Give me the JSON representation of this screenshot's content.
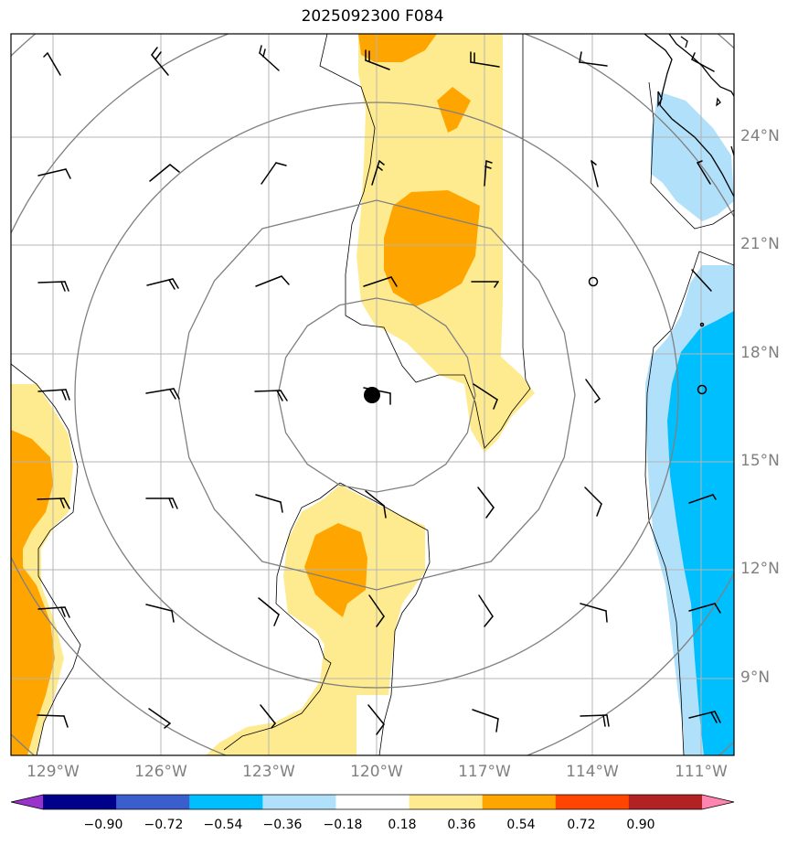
{
  "title": "2025092300 F084",
  "map": {
    "lat_labels": [
      "24°N",
      "21°N",
      "18°N",
      "15°N",
      "12°N",
      "9°N"
    ],
    "lon_labels": [
      "129°W",
      "126°W",
      "123°W",
      "120°W",
      "117°W",
      "114°W",
      "111°W"
    ],
    "storm_center": {
      "lon": -120.0,
      "lat": 16.9
    },
    "range_rings": 5
  },
  "colorbar": {
    "ticks": [
      "−0.90",
      "−0.72",
      "−0.54",
      "−0.36",
      "−0.18",
      "0.18",
      "0.36",
      "0.54",
      "0.72",
      "0.90"
    ],
    "colors": [
      "#9933cc",
      "#00008b",
      "#3a5fcd",
      "#00bfff",
      "#b0e0fa",
      "#ffffff",
      "#ffeb8f",
      "#ffa500",
      "#ff4500",
      "#b22222",
      "#ff85b0"
    ]
  },
  "colors": {
    "light_yellow": "#ffeb8f",
    "orange": "#ffa500",
    "light_blue": "#b0e0fa",
    "deep_sky_blue": "#00bfff"
  }
}
